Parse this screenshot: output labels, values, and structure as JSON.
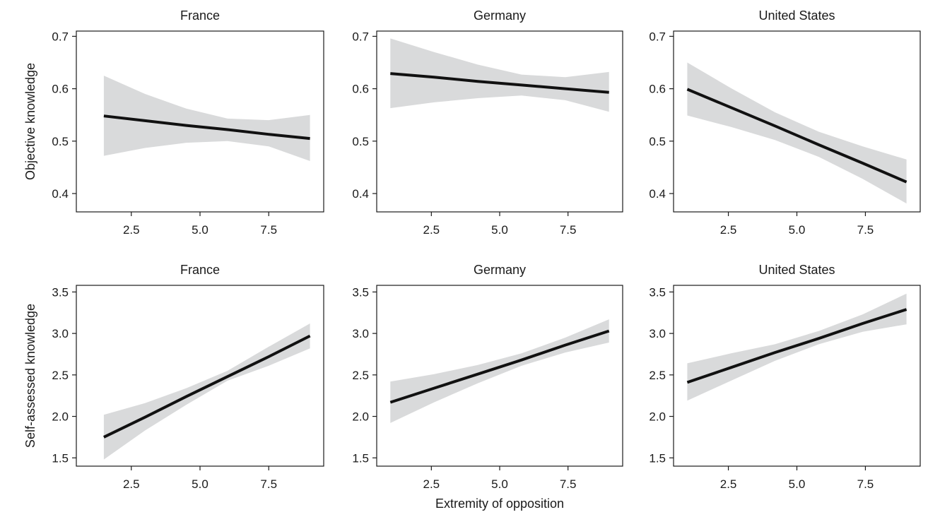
{
  "figure": {
    "xlabel": "Extremity of opposition",
    "row_labels": [
      "Objective knowledge",
      "Self-assessed knowledge"
    ],
    "colors": {
      "line": "#111111",
      "band": "#d9dadb",
      "axis": "#1a1a1a"
    }
  },
  "chart_data": [
    {
      "type": "line",
      "title": "France",
      "ylabel": "Objective knowledge",
      "xlim": [
        0.5,
        9.5
      ],
      "ylim": [
        0.365,
        0.71
      ],
      "xticks": [
        "2.5",
        "5.0",
        "7.5"
      ],
      "yticks": [
        "0.4",
        "0.5",
        "0.6",
        "0.7"
      ],
      "series": [
        {
          "name": "fit",
          "x": [
            1.5,
            3.0,
            4.5,
            6.0,
            7.5,
            9.0
          ],
          "y": [
            0.548,
            0.539,
            0.53,
            0.522,
            0.513,
            0.505
          ],
          "lower": [
            0.472,
            0.487,
            0.497,
            0.5,
            0.49,
            0.462
          ],
          "upper": [
            0.625,
            0.59,
            0.562,
            0.543,
            0.54,
            0.55
          ]
        }
      ]
    },
    {
      "type": "line",
      "title": "Germany",
      "ylabel": "",
      "xlim": [
        0.5,
        9.5
      ],
      "ylim": [
        0.365,
        0.71
      ],
      "xticks": [
        "2.5",
        "5.0",
        "7.5"
      ],
      "yticks": [
        "0.4",
        "0.5",
        "0.6",
        "0.7"
      ],
      "series": [
        {
          "name": "fit",
          "x": [
            1.0,
            2.6,
            4.2,
            5.8,
            7.4,
            9.0
          ],
          "y": [
            0.629,
            0.622,
            0.614,
            0.607,
            0.6,
            0.593
          ],
          "lower": [
            0.563,
            0.574,
            0.582,
            0.587,
            0.578,
            0.556
          ],
          "upper": [
            0.696,
            0.67,
            0.646,
            0.627,
            0.622,
            0.632
          ]
        }
      ]
    },
    {
      "type": "line",
      "title": "United States",
      "ylabel": "",
      "xlim": [
        0.5,
        9.5
      ],
      "ylim": [
        0.365,
        0.71
      ],
      "xticks": [
        "2.5",
        "5.0",
        "7.5"
      ],
      "yticks": [
        "0.4",
        "0.5",
        "0.6",
        "0.7"
      ],
      "series": [
        {
          "name": "fit",
          "x": [
            1.0,
            2.6,
            4.2,
            5.8,
            7.4,
            9.0
          ],
          "y": [
            0.599,
            0.564,
            0.529,
            0.493,
            0.458,
            0.422
          ],
          "lower": [
            0.549,
            0.527,
            0.502,
            0.47,
            0.428,
            0.381
          ],
          "upper": [
            0.65,
            0.601,
            0.555,
            0.518,
            0.49,
            0.465
          ]
        }
      ]
    },
    {
      "type": "line",
      "title": "France",
      "ylabel": "Self-assessed knowledge",
      "xlim": [
        0.5,
        9.5
      ],
      "ylim": [
        1.4,
        3.58
      ],
      "xticks": [
        "2.5",
        "5.0",
        "7.5"
      ],
      "yticks": [
        "1.5",
        "2.0",
        "2.5",
        "3.0",
        "3.5"
      ],
      "series": [
        {
          "name": "fit",
          "x": [
            1.5,
            3.0,
            4.5,
            6.0,
            7.5,
            9.0
          ],
          "y": [
            1.75,
            1.99,
            2.24,
            2.48,
            2.72,
            2.97
          ],
          "lower": [
            1.48,
            1.83,
            2.14,
            2.43,
            2.61,
            2.82
          ],
          "upper": [
            2.02,
            2.16,
            2.34,
            2.55,
            2.84,
            3.12
          ]
        }
      ]
    },
    {
      "type": "line",
      "title": "Germany",
      "ylabel": "",
      "xlim": [
        0.5,
        9.5
      ],
      "ylim": [
        1.4,
        3.58
      ],
      "xticks": [
        "2.5",
        "5.0",
        "7.5"
      ],
      "yticks": [
        "1.5",
        "2.0",
        "2.5",
        "3.0",
        "3.5"
      ],
      "series": [
        {
          "name": "fit",
          "x": [
            1.0,
            2.6,
            4.2,
            5.8,
            7.4,
            9.0
          ],
          "y": [
            2.17,
            2.34,
            2.51,
            2.68,
            2.86,
            3.03
          ],
          "lower": [
            1.92,
            2.17,
            2.4,
            2.61,
            2.77,
            2.89
          ],
          "upper": [
            2.42,
            2.51,
            2.62,
            2.76,
            2.95,
            3.17
          ]
        }
      ]
    },
    {
      "type": "line",
      "title": "United States",
      "ylabel": "",
      "xlim": [
        0.5,
        9.5
      ],
      "ylim": [
        1.4,
        3.58
      ],
      "xticks": [
        "2.5",
        "5.0",
        "7.5"
      ],
      "yticks": [
        "1.5",
        "2.0",
        "2.5",
        "3.0",
        "3.5"
      ],
      "series": [
        {
          "name": "fit",
          "x": [
            1.0,
            2.6,
            4.2,
            5.8,
            7.4,
            9.0
          ],
          "y": [
            2.41,
            2.59,
            2.77,
            2.94,
            3.12,
            3.29
          ],
          "lower": [
            2.19,
            2.43,
            2.67,
            2.87,
            3.02,
            3.11
          ],
          "upper": [
            2.64,
            2.76,
            2.87,
            3.03,
            3.23,
            3.48
          ]
        }
      ]
    }
  ]
}
